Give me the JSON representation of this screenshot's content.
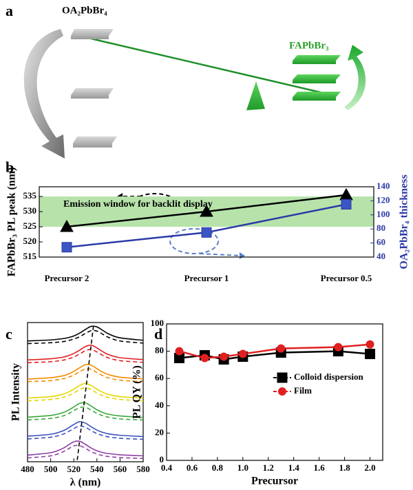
{
  "panel_a": {
    "label": "a",
    "left_label": "OA₂PbBr₄",
    "right_label": "FAPbBr₃"
  },
  "chart_data": [
    {
      "type": "line",
      "label": "b",
      "categories": [
        "Precursor 2",
        "Precursor 1",
        "Precursor 0.5"
      ],
      "ylabel": "FAPbBr₃ PL peak (nm)",
      "y2label": "OA₂PbBr₄ thickness",
      "annotation": "Emission window for backlit display",
      "ylim": [
        515,
        538.2
      ],
      "yticks": [
        515,
        520,
        525,
        530,
        535
      ],
      "y2lim": [
        40,
        140
      ],
      "y2ticks": [
        40,
        60,
        80,
        100,
        120,
        140
      ],
      "band": [
        525,
        535
      ],
      "band_color": "#b7e3aa",
      "series": [
        {
          "color": "#000000",
          "marker": "triangle",
          "values": [
            525,
            530,
            535.5
          ]
        },
        {
          "color": "#2b3aa5",
          "marker": "square",
          "axis": "y2",
          "values": [
            54,
            75,
            115
          ]
        }
      ]
    },
    {
      "type": "line",
      "label": "c",
      "xlabel": "λ (nm)",
      "ylabel": "PL Intensity",
      "smooth": true,
      "xlim": [
        480,
        580
      ],
      "xticks": [
        480,
        500,
        520,
        540,
        560,
        580
      ],
      "ylim": [
        0,
        8
      ],
      "x": [
        480,
        500,
        510,
        515,
        520,
        525,
        530,
        535,
        540,
        545,
        550,
        560,
        580
      ],
      "series": [
        {
          "color": "#000000",
          "values": [
            6.94,
            7.0,
            7.07,
            7.13,
            7.23,
            7.39,
            7.6,
            7.78,
            7.75,
            7.55,
            7.35,
            7.12,
            6.98
          ]
        },
        {
          "color": "#000000",
          "linestyle": "dashed",
          "values": [
            6.79,
            6.84,
            6.9,
            6.96,
            7.05,
            7.18,
            7.37,
            7.53,
            7.51,
            7.33,
            7.15,
            6.94,
            6.82
          ]
        },
        {
          "color": "#e02020",
          "values": [
            5.85,
            5.92,
            6.0,
            6.09,
            6.22,
            6.41,
            6.62,
            6.7,
            6.54,
            6.33,
            6.16,
            5.98,
            5.87
          ]
        },
        {
          "color": "#e02020",
          "linestyle": "dashed",
          "values": [
            5.69,
            5.75,
            5.83,
            5.91,
            6.02,
            6.19,
            6.38,
            6.45,
            6.31,
            6.12,
            5.97,
            5.81,
            5.71
          ]
        },
        {
          "color": "#f08c00",
          "values": [
            4.75,
            4.83,
            4.93,
            5.03,
            5.19,
            5.4,
            5.58,
            5.55,
            5.35,
            5.15,
            5.01,
            4.86,
            4.76
          ]
        },
        {
          "color": "#f08c00",
          "linestyle": "dashed",
          "values": [
            4.6,
            4.66,
            4.76,
            4.85,
            4.98,
            5.17,
            5.33,
            5.31,
            5.13,
            4.95,
            4.82,
            4.69,
            4.6
          ]
        },
        {
          "color": "#e6d600",
          "values": [
            3.66,
            3.74,
            3.87,
            3.99,
            4.17,
            4.38,
            4.5,
            4.38,
            4.17,
            3.99,
            3.87,
            3.74,
            3.66
          ]
        },
        {
          "color": "#e6d600",
          "linestyle": "dashed",
          "values": [
            3.5,
            3.58,
            3.69,
            3.79,
            3.95,
            4.15,
            4.25,
            4.15,
            3.95,
            3.79,
            3.69,
            3.58,
            3.5
          ]
        },
        {
          "color": "#3aa83a",
          "values": [
            2.56,
            2.66,
            2.81,
            2.95,
            3.15,
            3.35,
            3.38,
            3.2,
            2.99,
            2.83,
            2.73,
            2.63,
            2.55
          ]
        },
        {
          "color": "#3aa83a",
          "linestyle": "dashed",
          "values": [
            2.4,
            2.49,
            2.62,
            2.75,
            2.93,
            3.11,
            3.13,
            2.97,
            2.78,
            2.65,
            2.56,
            2.46,
            2.4
          ]
        },
        {
          "color": "#3a4fc0",
          "values": [
            1.47,
            1.58,
            1.76,
            1.93,
            2.14,
            2.3,
            2.22,
            2.01,
            1.82,
            1.69,
            1.6,
            1.52,
            1.45
          ]
        },
        {
          "color": "#3a4fc0",
          "linestyle": "dashed",
          "values": [
            1.31,
            1.41,
            1.57,
            1.72,
            1.91,
            2.05,
            1.98,
            1.79,
            1.62,
            1.51,
            1.43,
            1.35,
            1.29
          ]
        },
        {
          "color": "#8e3fa6",
          "values": [
            0.38,
            0.52,
            0.75,
            0.95,
            1.15,
            1.18,
            1.0,
            0.79,
            0.63,
            0.53,
            0.47,
            0.4,
            0.34
          ]
        },
        {
          "color": "#8e3fa6",
          "linestyle": "dashed",
          "values": [
            0.22,
            0.34,
            0.55,
            0.73,
            0.91,
            0.93,
            0.77,
            0.58,
            0.45,
            0.36,
            0.3,
            0.24,
            0.19
          ]
        },
        {
          "color": "#000000",
          "linestyle": "dashed",
          "x": [
            523,
            537
          ],
          "values": [
            0.1,
            7.8
          ]
        }
      ]
    },
    {
      "type": "line",
      "label": "d",
      "xlabel": "Precursor",
      "ylabel": "PL QY (%)",
      "legend": "right",
      "xlim": [
        0.4,
        2.1
      ],
      "xticks": [
        0.4,
        0.6,
        0.8,
        {
          "value": 1,
          "label": "1.0"
        },
        1.2,
        1.4,
        1.6,
        1.8,
        {
          "value": 2,
          "label": "2.0"
        }
      ],
      "ylim": [
        0,
        100
      ],
      "yticks": [
        0,
        20,
        40,
        60,
        80,
        100
      ],
      "x": [
        0.5,
        0.7,
        0.85,
        1.0,
        1.3,
        1.75,
        2.0
      ],
      "series": [
        {
          "name": "Colloid dispersion",
          "color": "#000000",
          "marker": "square",
          "values": [
            75,
            77,
            74,
            76,
            79,
            80,
            78
          ]
        },
        {
          "name": "Film",
          "color": "#e02020",
          "marker": "circle",
          "values": [
            80,
            75,
            76,
            78,
            82,
            83,
            85
          ]
        }
      ]
    }
  ]
}
